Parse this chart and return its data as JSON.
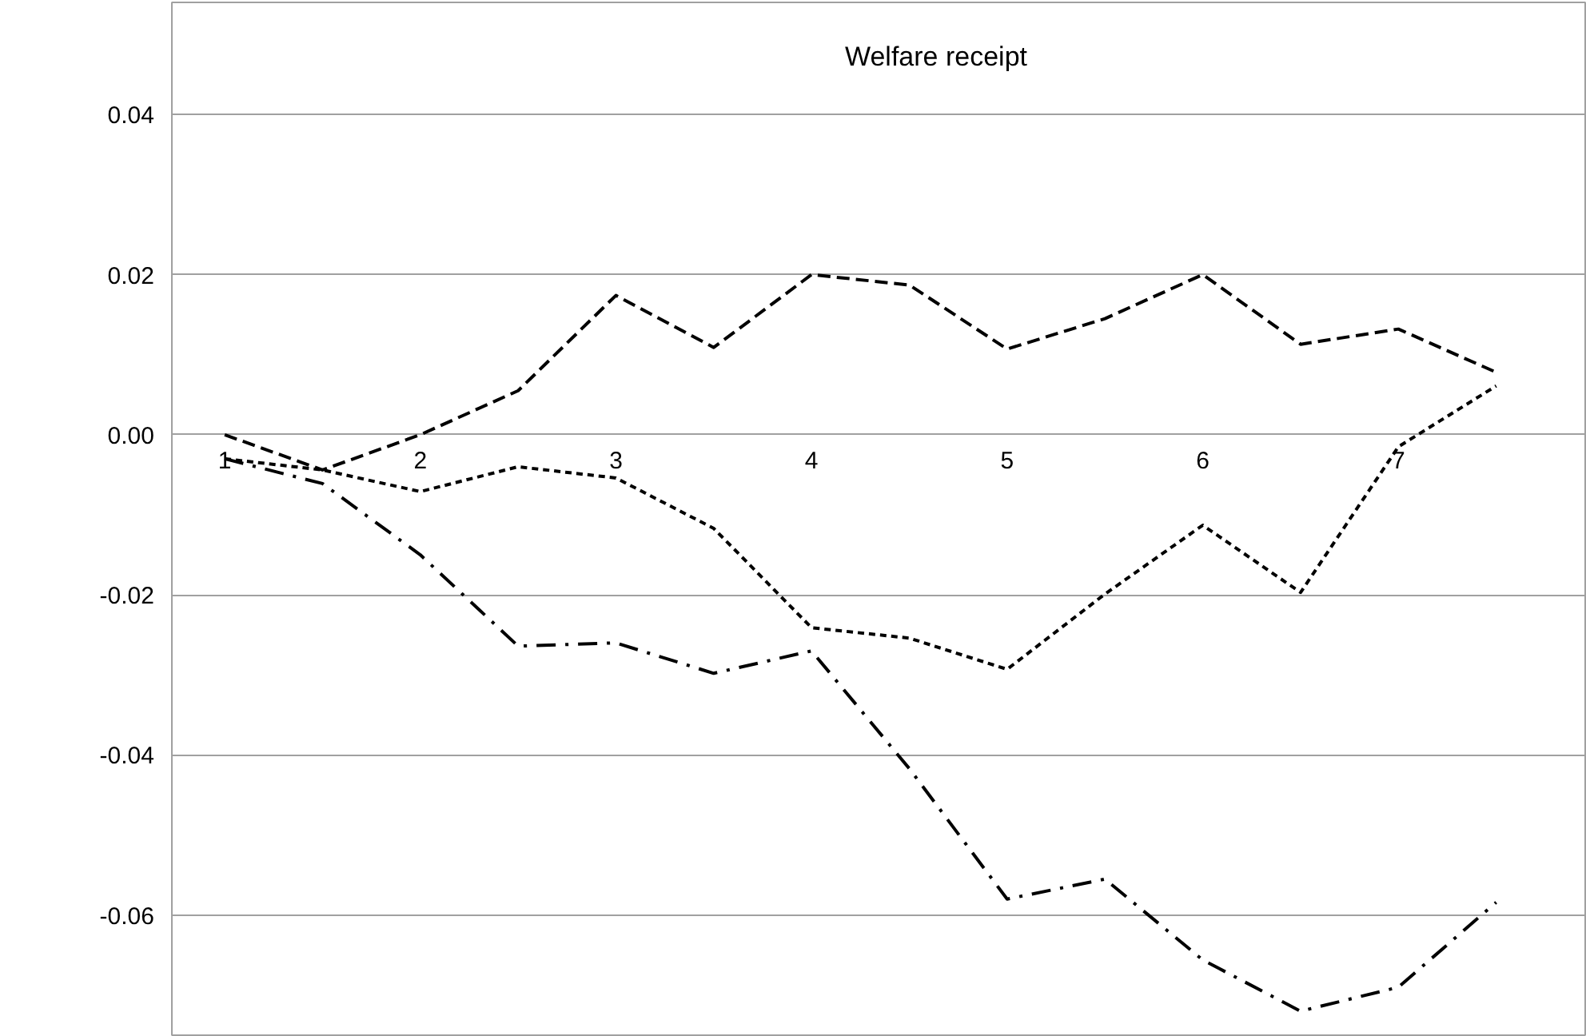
{
  "chart_data": {
    "type": "line",
    "title": "Welfare receipt",
    "x": [
      1,
      1.5,
      2,
      2.5,
      3,
      3.5,
      4,
      4.5,
      5,
      5.5,
      6,
      6.5,
      7,
      7.5
    ],
    "series": [
      {
        "color": "#000000",
        "line_style": "dashed",
        "values": [
          0.0,
          -0.0044,
          0.0,
          0.0055,
          0.0174,
          0.0109,
          0.02,
          0.0187,
          0.0107,
          0.0145,
          0.02,
          0.0113,
          0.0132,
          0.0078
        ]
      },
      {
        "color": "#000000",
        "line_style": "dotted",
        "values": [
          -0.003,
          -0.0044,
          -0.0071,
          -0.004,
          -0.0054,
          -0.0117,
          -0.0241,
          -0.0254,
          -0.0293,
          -0.0199,
          -0.0113,
          -0.0197,
          -0.0015,
          0.0061
        ]
      },
      {
        "color": "#000000",
        "line_style": "dashdot",
        "values": [
          -0.003,
          -0.0061,
          -0.015,
          -0.0264,
          -0.026,
          -0.0298,
          -0.027,
          -0.0417,
          -0.058,
          -0.0555,
          -0.0656,
          -0.072,
          -0.069,
          -0.0584
        ]
      }
    ],
    "xlim": [
      0.73,
      7.955
    ],
    "ylim": [
      -0.075,
      0.054
    ],
    "xticks": [
      1,
      2,
      3,
      4,
      5,
      6,
      7
    ],
    "yticks": [
      {
        "value": -0.06,
        "label": "-0.06"
      },
      {
        "value": -0.04,
        "label": "-0.04"
      },
      {
        "value": -0.02,
        "label": "-0.02"
      },
      {
        "value": 0,
        "label": "0.00"
      },
      {
        "value": 0.02,
        "label": "0.02"
      },
      {
        "value": 0.04,
        "label": "0.04"
      }
    ],
    "grid": "y"
  }
}
